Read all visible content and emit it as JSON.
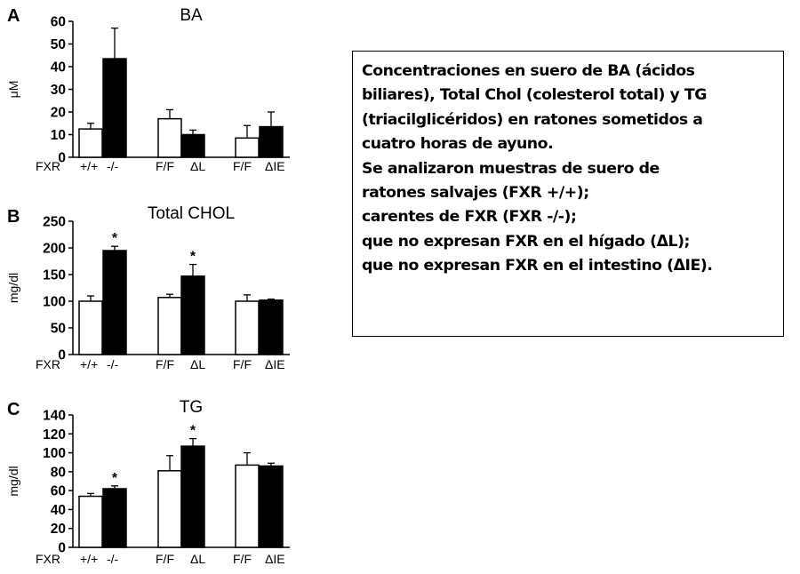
{
  "caption": {
    "lines": [
      "Concentraciones en suero de BA (ácidos",
      "biliares), Total Chol (colesterol total) y TG",
      "(triacilglicéridos) en ratones sometidos a",
      "cuatro horas de ayuno.",
      "Se analizaron muestras de suero de",
      "ratones salvajes (FXR +/+);",
      "carentes de FXR (FXR -/-);",
      "que no expresan FXR en el hígado (ΔL);",
      "que no expresan FXR en el intestino (ΔIE)."
    ]
  },
  "chart_data": [
    {
      "panel": "A",
      "type": "bar",
      "title": "BA",
      "ylabel": "μM",
      "ylim": [
        0,
        60
      ],
      "yticks": [
        0,
        10,
        20,
        30,
        40,
        50,
        60
      ],
      "group_labels": [
        "FXR",
        "F/F",
        "F/F"
      ],
      "bar_labels": [
        "+/+",
        "-/-",
        "ΔL",
        "ΔIE"
      ],
      "bars": [
        {
          "value": 12.5,
          "error": 2.5,
          "fill": "white",
          "sig": ""
        },
        {
          "value": 43.5,
          "error": 13.5,
          "fill": "black",
          "sig": ""
        },
        {
          "value": 17,
          "error": 4,
          "fill": "white",
          "sig": ""
        },
        {
          "value": 10,
          "error": 2,
          "fill": "black",
          "sig": ""
        },
        {
          "value": 8.5,
          "error": 5.5,
          "fill": "white",
          "sig": ""
        },
        {
          "value": 13.5,
          "error": 6.5,
          "fill": "black",
          "sig": ""
        }
      ]
    },
    {
      "panel": "B",
      "type": "bar",
      "title": "Total CHOL",
      "ylabel": "mg/dl",
      "ylim": [
        0,
        250
      ],
      "yticks": [
        0,
        50,
        100,
        150,
        200,
        250
      ],
      "group_labels": [
        "FXR",
        "F/F",
        "F/F"
      ],
      "bar_labels": [
        "+/+",
        "-/-",
        "ΔL",
        "ΔIE"
      ],
      "bars": [
        {
          "value": 100,
          "error": 10,
          "fill": "white",
          "sig": ""
        },
        {
          "value": 195,
          "error": 8,
          "fill": "black",
          "sig": "*"
        },
        {
          "value": 107,
          "error": 6,
          "fill": "white",
          "sig": ""
        },
        {
          "value": 147,
          "error": 22,
          "fill": "black",
          "sig": "*"
        },
        {
          "value": 100,
          "error": 12,
          "fill": "white",
          "sig": ""
        },
        {
          "value": 102,
          "error": 2,
          "fill": "black",
          "sig": ""
        }
      ]
    },
    {
      "panel": "C",
      "type": "bar",
      "title": "TG",
      "ylabel": "mg/dl",
      "ylim": [
        0,
        140
      ],
      "yticks": [
        0,
        20,
        40,
        60,
        80,
        100,
        120,
        140
      ],
      "group_labels": [
        "FXR",
        "F/F",
        "F/F"
      ],
      "bar_labels": [
        "+/+",
        "-/-",
        "ΔL",
        "ΔIE"
      ],
      "bars": [
        {
          "value": 54,
          "error": 3,
          "fill": "white",
          "sig": ""
        },
        {
          "value": 62,
          "error": 3,
          "fill": "black",
          "sig": "*"
        },
        {
          "value": 81,
          "error": 16,
          "fill": "white",
          "sig": ""
        },
        {
          "value": 107,
          "error": 8,
          "fill": "black",
          "sig": "*"
        },
        {
          "value": 87,
          "error": 13,
          "fill": "white",
          "sig": ""
        },
        {
          "value": 86,
          "error": 3,
          "fill": "black",
          "sig": ""
        }
      ]
    }
  ]
}
